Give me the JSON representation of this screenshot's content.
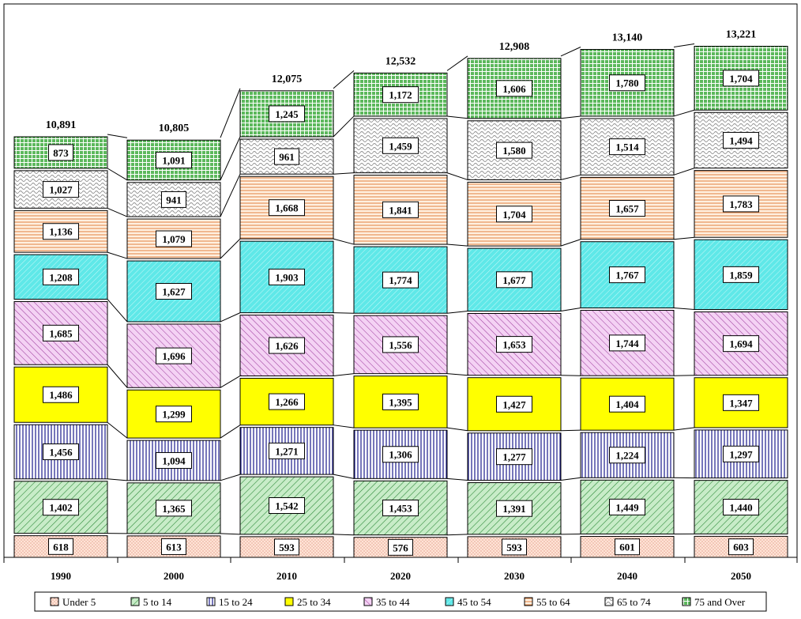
{
  "chart_data": {
    "type": "bar",
    "stacked": true,
    "categories": [
      "1990",
      "2000",
      "2010",
      "2020",
      "2030",
      "2040",
      "2050"
    ],
    "totals": [
      "10,891",
      "10,805",
      "12,075",
      "12,532",
      "12,908",
      "13,140",
      "13,221"
    ],
    "series": [
      {
        "name": "Under 5",
        "values": [
          618,
          613,
          593,
          576,
          593,
          601,
          603
        ],
        "color": "#ffe4d6",
        "pattern": "dots",
        "ink": "#d27a6a"
      },
      {
        "name": "5 to 14",
        "values": [
          1402,
          1365,
          1542,
          1453,
          1391,
          1449,
          1440
        ],
        "color": "#c8ecc8",
        "pattern": "diag-fwd",
        "ink": "#2e8b3a"
      },
      {
        "name": "15 to 24",
        "values": [
          1456,
          1094,
          1271,
          1306,
          1277,
          1224,
          1297
        ],
        "color": "#ffffff",
        "pattern": "vert",
        "ink": "#1a1a8c"
      },
      {
        "name": "25 to 34",
        "values": [
          1486,
          1299,
          1266,
          1395,
          1427,
          1404,
          1347
        ],
        "color": "#ffff00",
        "pattern": "none",
        "ink": "#ffff00"
      },
      {
        "name": "35 to 44",
        "values": [
          1685,
          1696,
          1626,
          1556,
          1653,
          1744,
          1694
        ],
        "color": "#f4d2f4",
        "pattern": "diag-back",
        "ink": "#a040a0"
      },
      {
        "name": "45 to 54",
        "values": [
          1208,
          1627,
          1903,
          1774,
          1677,
          1767,
          1859
        ],
        "color": "#5fe8e8",
        "pattern": "diag-fwd-light",
        "ink": "#ffffff"
      },
      {
        "name": "55 to 64",
        "values": [
          1136,
          1079,
          1668,
          1841,
          1704,
          1657,
          1783
        ],
        "color": "#fff0e0",
        "pattern": "horiz",
        "ink": "#e08040"
      },
      {
        "name": "65 to 74",
        "values": [
          1027,
          941,
          961,
          1459,
          1580,
          1514,
          1494
        ],
        "color": "#ffffff",
        "pattern": "wave",
        "ink": "#909090"
      },
      {
        "name": "75 and Over",
        "values": [
          873,
          1091,
          1245,
          1172,
          1606,
          1780,
          1704
        ],
        "color": "#8fd08f",
        "pattern": "grid",
        "ink": "#ffffff"
      }
    ],
    "ylim": [
      0,
      13700
    ],
    "grid": false,
    "legend": "bottom"
  }
}
